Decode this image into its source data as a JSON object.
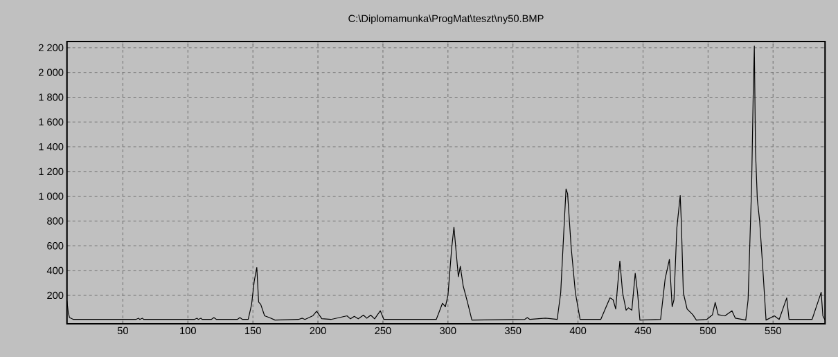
{
  "chart_data": {
    "type": "line",
    "title": "C:\\Diplomamunka\\ProgMat\\teszt\\ny50.BMP",
    "xlim": [
      7,
      590
    ],
    "ylim": [
      -30,
      2250
    ],
    "xticks": [
      50,
      100,
      150,
      200,
      250,
      300,
      350,
      400,
      450,
      500,
      550
    ],
    "yticks": [
      200,
      400,
      600,
      800,
      {
        "value": 1000,
        "label": "1 000"
      },
      {
        "value": 1200,
        "label": "1 200"
      },
      {
        "value": 1400,
        "label": "1 400"
      },
      {
        "value": 1600,
        "label": "1 600"
      },
      {
        "value": 1800,
        "label": "1 800"
      },
      {
        "value": 2000,
        "label": "2 000"
      },
      {
        "value": 2200,
        "label": "2 200"
      }
    ],
    "grid": true,
    "marker": "none",
    "line_style": "solid",
    "series": [
      {
        "color": "#000000",
        "x": [
          7,
          8,
          9,
          12,
          20,
          60,
          62,
          63,
          65,
          66,
          80,
          105,
          107,
          108,
          110,
          111,
          118,
          120,
          122,
          138,
          140,
          142,
          146.4,
          149,
          151,
          153,
          154.4,
          156,
          159,
          163,
          167,
          185,
          188,
          190,
          196,
          199,
          203,
          210,
          222.4,
          225,
          228,
          231,
          235,
          237.5,
          240.6,
          243.6,
          248,
          250.7,
          291,
          295.8,
          298,
          300,
          302.8,
          304.6,
          306.4,
          308,
          309.5,
          311.7,
          315,
          318.4,
          359,
          361,
          363,
          375,
          384,
          386.7,
          389.4,
          390.8,
          392,
          394.7,
          398,
          401.6,
          417.5,
          424.6,
          427,
          429,
          430.3,
          432.2,
          434.3,
          437,
          438.8,
          441.4,
          444,
          445.8,
          447.6,
          463.5,
          467,
          470.3,
          472.4,
          473.8,
          476,
          478.6,
          479.5,
          481,
          483.9,
          488.3,
          491,
          499,
          503.4,
          505.5,
          507.8,
          513,
          518.4,
          521,
          529,
          530.8,
          533.5,
          534.7,
          535.6,
          536.5,
          537.9,
          539.7,
          542.3,
          544.6,
          551,
          554.7,
          560.5,
          562.3,
          580,
          584.8,
          587,
          588.3,
          590
        ],
        "values": [
          155,
          60,
          20,
          5,
          5,
          5,
          15,
          5,
          15,
          5,
          5,
          5,
          15,
          5,
          15,
          5,
          5,
          20,
          5,
          5,
          20,
          5,
          5,
          127,
          313,
          425,
          145,
          127,
          34,
          19,
          0,
          5,
          15,
          5,
          34,
          71,
          11,
          5,
          34,
          10,
          30,
          10,
          40,
          15,
          40,
          10,
          75,
          5,
          5,
          136,
          108,
          200,
          575,
          751,
          537,
          350,
          434,
          276,
          145,
          0,
          5,
          20,
          5,
          15,
          5,
          220,
          779,
          1059,
          1021,
          593,
          220,
          5,
          5,
          179,
          164,
          89,
          257,
          477,
          220,
          80,
          99,
          80,
          378,
          220,
          0,
          5,
          332,
          490,
          108,
          164,
          742,
          1006,
          779,
          220,
          89,
          43,
          0,
          5,
          43,
          142,
          43,
          34,
          75,
          15,
          0,
          164,
          1077,
          1804,
          2214,
          1366,
          975,
          798,
          388,
          0,
          34,
          5,
          179,
          5,
          5,
          155,
          224,
          34,
          0
        ]
      }
    ]
  }
}
